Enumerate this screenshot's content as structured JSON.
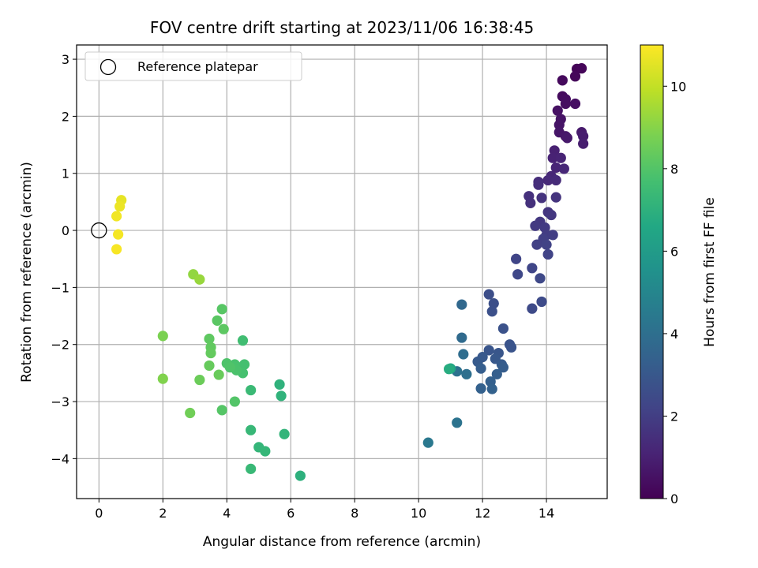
{
  "chart_data": {
    "type": "scatter",
    "title": "FOV centre drift starting at 2023/11/06 16:38:45",
    "xlabel": "Angular distance from reference (arcmin)",
    "ylabel": "Rotation from reference (arcmin)",
    "xlim": [
      -0.7,
      15.9
    ],
    "ylim": [
      -4.7,
      3.25
    ],
    "x_ticks": [
      0,
      2,
      4,
      6,
      8,
      10,
      12,
      14
    ],
    "y_ticks": [
      -4,
      -3,
      -2,
      -1,
      0,
      1,
      2,
      3
    ],
    "grid": true,
    "legend": {
      "placement": "top-left",
      "entries": [
        "Reference platepar"
      ]
    },
    "reference_point": {
      "x": 0,
      "y": 0
    },
    "colorbar": {
      "label": "Hours from first FF file",
      "colormap": "viridis",
      "range": [
        0,
        11
      ],
      "ticks": [
        0,
        2,
        4,
        6,
        8,
        10
      ]
    },
    "points": [
      {
        "x": 14.95,
        "y": 2.83,
        "c": 0.1
      },
      {
        "x": 15.1,
        "y": 2.84,
        "c": 0.15
      },
      {
        "x": 14.9,
        "y": 2.7,
        "c": 0.2
      },
      {
        "x": 14.5,
        "y": 2.63,
        "c": 0.25
      },
      {
        "x": 14.5,
        "y": 2.35,
        "c": 0.3
      },
      {
        "x": 14.6,
        "y": 2.3,
        "c": 0.35
      },
      {
        "x": 14.6,
        "y": 2.22,
        "c": 0.4
      },
      {
        "x": 14.9,
        "y": 2.22,
        "c": 0.45
      },
      {
        "x": 14.35,
        "y": 2.1,
        "c": 0.5
      },
      {
        "x": 14.45,
        "y": 1.95,
        "c": 0.55
      },
      {
        "x": 14.4,
        "y": 1.85,
        "c": 0.6
      },
      {
        "x": 14.4,
        "y": 1.72,
        "c": 0.65
      },
      {
        "x": 14.6,
        "y": 1.65,
        "c": 0.7
      },
      {
        "x": 14.65,
        "y": 1.62,
        "c": 0.75
      },
      {
        "x": 15.1,
        "y": 1.72,
        "c": 0.8
      },
      {
        "x": 15.15,
        "y": 1.65,
        "c": 0.85
      },
      {
        "x": 15.15,
        "y": 1.52,
        "c": 0.9
      },
      {
        "x": 14.25,
        "y": 1.4,
        "c": 1.0
      },
      {
        "x": 14.2,
        "y": 1.27,
        "c": 1.05
      },
      {
        "x": 14.45,
        "y": 1.27,
        "c": 1.1
      },
      {
        "x": 14.3,
        "y": 1.1,
        "c": 1.15
      },
      {
        "x": 14.55,
        "y": 1.08,
        "c": 1.2
      },
      {
        "x": 14.15,
        "y": 0.95,
        "c": 1.25
      },
      {
        "x": 14.05,
        "y": 0.88,
        "c": 1.3
      },
      {
        "x": 14.3,
        "y": 0.88,
        "c": 1.35
      },
      {
        "x": 13.75,
        "y": 0.85,
        "c": 1.4
      },
      {
        "x": 13.75,
        "y": 0.8,
        "c": 1.45
      },
      {
        "x": 13.45,
        "y": 0.6,
        "c": 1.5
      },
      {
        "x": 13.5,
        "y": 0.48,
        "c": 1.55
      },
      {
        "x": 13.85,
        "y": 0.57,
        "c": 1.6
      },
      {
        "x": 14.3,
        "y": 0.58,
        "c": 1.65
      },
      {
        "x": 14.05,
        "y": 0.32,
        "c": 1.7
      },
      {
        "x": 14.15,
        "y": 0.27,
        "c": 1.75
      },
      {
        "x": 13.8,
        "y": 0.15,
        "c": 1.8
      },
      {
        "x": 13.65,
        "y": 0.08,
        "c": 1.85
      },
      {
        "x": 13.95,
        "y": 0.05,
        "c": 1.9
      },
      {
        "x": 14.0,
        "y": -0.08,
        "c": 1.95
      },
      {
        "x": 14.2,
        "y": -0.08,
        "c": 2.0
      },
      {
        "x": 13.9,
        "y": -0.15,
        "c": 2.05
      },
      {
        "x": 13.7,
        "y": -0.25,
        "c": 2.1
      },
      {
        "x": 14.0,
        "y": -0.25,
        "c": 2.15
      },
      {
        "x": 14.05,
        "y": -0.42,
        "c": 2.2
      },
      {
        "x": 13.05,
        "y": -0.5,
        "c": 2.25
      },
      {
        "x": 13.55,
        "y": -0.66,
        "c": 2.3
      },
      {
        "x": 13.1,
        "y": -0.77,
        "c": 2.35
      },
      {
        "x": 13.8,
        "y": -0.84,
        "c": 2.4
      },
      {
        "x": 13.55,
        "y": -1.37,
        "c": 2.45
      },
      {
        "x": 13.85,
        "y": -1.25,
        "c": 2.5
      },
      {
        "x": 12.2,
        "y": -1.12,
        "c": 2.6
      },
      {
        "x": 12.35,
        "y": -1.28,
        "c": 2.65
      },
      {
        "x": 12.3,
        "y": -1.42,
        "c": 2.7
      },
      {
        "x": 12.65,
        "y": -1.72,
        "c": 2.75
      },
      {
        "x": 12.85,
        "y": -2.0,
        "c": 2.8
      },
      {
        "x": 12.9,
        "y": -2.05,
        "c": 2.85
      },
      {
        "x": 12.2,
        "y": -2.1,
        "c": 2.9
      },
      {
        "x": 12.5,
        "y": -2.15,
        "c": 2.95
      },
      {
        "x": 12.4,
        "y": -2.25,
        "c": 3.0
      },
      {
        "x": 12.0,
        "y": -2.22,
        "c": 3.05
      },
      {
        "x": 11.85,
        "y": -2.3,
        "c": 3.1
      },
      {
        "x": 12.6,
        "y": -2.35,
        "c": 3.15
      },
      {
        "x": 12.65,
        "y": -2.4,
        "c": 3.2
      },
      {
        "x": 11.95,
        "y": -2.42,
        "c": 3.25
      },
      {
        "x": 12.45,
        "y": -2.52,
        "c": 3.3
      },
      {
        "x": 12.25,
        "y": -2.65,
        "c": 3.35
      },
      {
        "x": 11.95,
        "y": -2.77,
        "c": 3.4
      },
      {
        "x": 12.3,
        "y": -2.78,
        "c": 3.45
      },
      {
        "x": 11.35,
        "y": -1.3,
        "c": 3.7
      },
      {
        "x": 11.35,
        "y": -1.88,
        "c": 3.8
      },
      {
        "x": 11.4,
        "y": -2.17,
        "c": 3.9
      },
      {
        "x": 11.5,
        "y": -2.52,
        "c": 4.0
      },
      {
        "x": 11.2,
        "y": -2.47,
        "c": 4.1
      },
      {
        "x": 11.2,
        "y": -3.37,
        "c": 4.2
      },
      {
        "x": 10.3,
        "y": -3.72,
        "c": 4.4
      },
      {
        "x": 11.0,
        "y": -2.42,
        "c": 6.5
      },
      {
        "x": 10.95,
        "y": -2.43,
        "c": 6.8
      },
      {
        "x": 6.3,
        "y": -4.3,
        "c": 7.0
      },
      {
        "x": 5.65,
        "y": -2.7,
        "c": 7.05
      },
      {
        "x": 5.7,
        "y": -2.9,
        "c": 7.1
      },
      {
        "x": 5.8,
        "y": -3.57,
        "c": 7.15
      },
      {
        "x": 5.0,
        "y": -3.8,
        "c": 7.2
      },
      {
        "x": 5.2,
        "y": -3.87,
        "c": 7.25
      },
      {
        "x": 4.75,
        "y": -3.5,
        "c": 7.3
      },
      {
        "x": 4.75,
        "y": -4.18,
        "c": 7.35
      },
      {
        "x": 4.75,
        "y": -2.8,
        "c": 7.4
      },
      {
        "x": 4.5,
        "y": -1.93,
        "c": 7.6
      },
      {
        "x": 4.55,
        "y": -2.35,
        "c": 7.7
      },
      {
        "x": 4.5,
        "y": -2.5,
        "c": 7.75
      },
      {
        "x": 4.25,
        "y": -2.35,
        "c": 7.8
      },
      {
        "x": 4.3,
        "y": -2.45,
        "c": 7.85
      },
      {
        "x": 4.0,
        "y": -2.33,
        "c": 7.9
      },
      {
        "x": 4.1,
        "y": -2.4,
        "c": 7.95
      },
      {
        "x": 4.25,
        "y": -3.0,
        "c": 8.0
      },
      {
        "x": 3.85,
        "y": -3.15,
        "c": 8.05
      },
      {
        "x": 3.85,
        "y": -1.38,
        "c": 8.1
      },
      {
        "x": 3.7,
        "y": -1.58,
        "c": 8.15
      },
      {
        "x": 3.9,
        "y": -1.73,
        "c": 8.2
      },
      {
        "x": 3.45,
        "y": -1.9,
        "c": 8.25
      },
      {
        "x": 3.5,
        "y": -2.05,
        "c": 8.3
      },
      {
        "x": 3.5,
        "y": -2.15,
        "c": 8.35
      },
      {
        "x": 3.45,
        "y": -2.37,
        "c": 8.4
      },
      {
        "x": 3.75,
        "y": -2.53,
        "c": 8.45
      },
      {
        "x": 3.15,
        "y": -2.62,
        "c": 8.5
      },
      {
        "x": 2.85,
        "y": -3.2,
        "c": 8.6
      },
      {
        "x": 2.0,
        "y": -1.85,
        "c": 8.8
      },
      {
        "x": 2.0,
        "y": -2.6,
        "c": 8.9
      },
      {
        "x": 2.95,
        "y": -0.77,
        "c": 9.2
      },
      {
        "x": 3.15,
        "y": -0.86,
        "c": 9.3
      },
      {
        "x": 0.7,
        "y": 0.53,
        "c": 10.6
      },
      {
        "x": 0.65,
        "y": 0.42,
        "c": 10.7
      },
      {
        "x": 0.55,
        "y": 0.25,
        "c": 10.8
      },
      {
        "x": 0.6,
        "y": -0.07,
        "c": 10.85
      },
      {
        "x": 0.55,
        "y": -0.33,
        "c": 10.9
      }
    ]
  }
}
